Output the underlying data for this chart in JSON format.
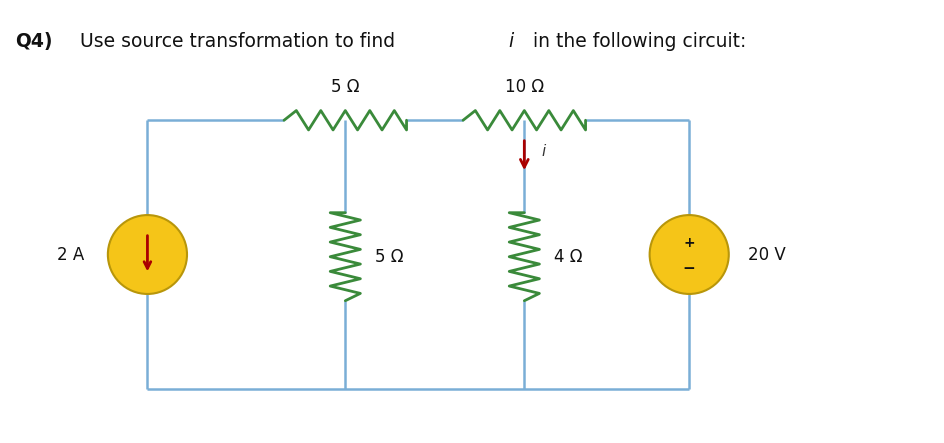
{
  "bg_color": "#ffffff",
  "wire_color": "#7aaed6",
  "resistor_color": "#3a8a3a",
  "arrow_color": "#aa0000",
  "source_fill": "#f5c518",
  "source_edge": "#b8960a",
  "title_bold": "Q4)",
  "title_rest": " Use source transformation to find ",
  "title_i": "i",
  "title_end": " in the following circuit:",
  "label_5ohm_top": "5 Ω",
  "label_10ohm_top": "10 Ω",
  "label_5ohm_v": "5 Ω",
  "label_4ohm_v": "4 Ω",
  "label_2A": "2 A",
  "label_20V": "20 V",
  "circuit": {
    "xl": 0.155,
    "xm1": 0.365,
    "xm2": 0.555,
    "xr": 0.73,
    "yt": 0.73,
    "ym": 0.42,
    "yb": 0.12
  }
}
